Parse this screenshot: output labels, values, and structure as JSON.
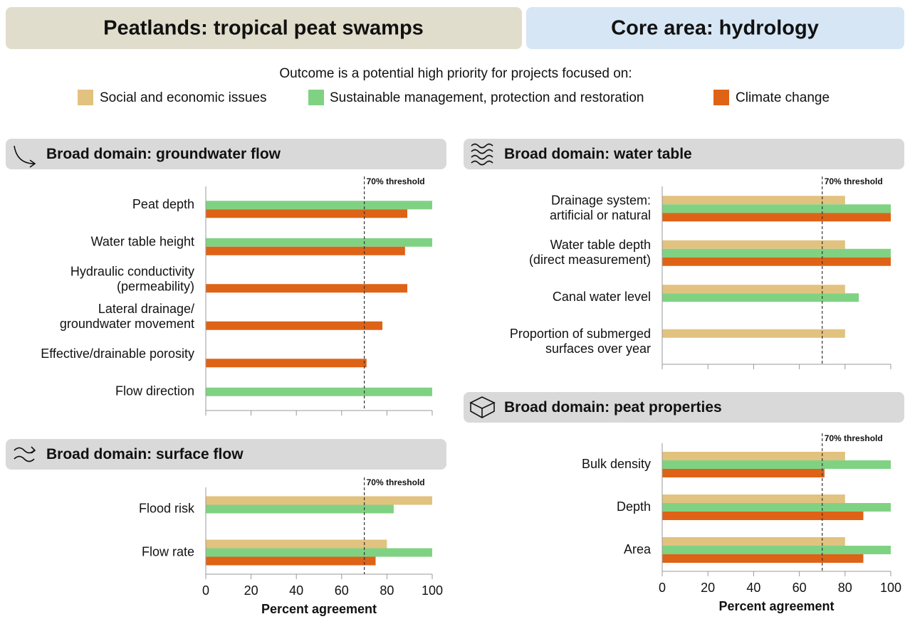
{
  "header": {
    "left": "Peatlands: tropical peat swamps",
    "right": "Core area: hydrology"
  },
  "legend": {
    "title": "Outcome is a potential high priority for projects focused on:",
    "items": [
      {
        "name": "Social and economic issues",
        "color": "#e2c27f"
      },
      {
        "name": "Sustainable management, protection and restoration",
        "color": "#80d283"
      },
      {
        "name": "Climate change",
        "color": "#de6316"
      }
    ]
  },
  "chart_data": [
    {
      "type": "bar",
      "title": "Broad domain: groundwater flow",
      "categories": [
        [
          "Peat depth"
        ],
        [
          "Water table height"
        ],
        [
          "Hydraulic conductivity",
          "(permeability)"
        ],
        [
          "Lateral drainage/",
          "groundwater movement"
        ],
        [
          "Effective/drainable porosity"
        ],
        [
          "Flow direction"
        ]
      ],
      "series": [
        {
          "values": [
            null,
            null,
            null,
            null,
            null,
            null
          ]
        },
        {
          "values": [
            100,
            100,
            null,
            null,
            null,
            100
          ]
        },
        {
          "values": [
            89,
            88,
            89,
            78,
            71,
            null
          ]
        }
      ],
      "xlim": [
        0,
        100
      ],
      "xticks": [
        0,
        20,
        40,
        60,
        80,
        100
      ],
      "tick_labels": false,
      "threshold": {
        "value": 70,
        "label": "70% threshold"
      }
    },
    {
      "type": "bar",
      "title": "Broad domain: surface flow",
      "categories": [
        [
          "Flood risk"
        ],
        [
          "Flow rate"
        ]
      ],
      "series": [
        {
          "values": [
            100,
            80
          ]
        },
        {
          "values": [
            83,
            100
          ]
        },
        {
          "values": [
            null,
            75
          ]
        }
      ],
      "xlim": [
        0,
        100
      ],
      "xticks": [
        0,
        20,
        40,
        60,
        80,
        100
      ],
      "tick_labels": true,
      "xlabel": "Percent agreement",
      "threshold": {
        "value": 70,
        "label": "70% threshold"
      }
    },
    {
      "type": "bar",
      "title": "Broad domain: water table",
      "categories": [
        [
          "Drainage system:",
          "artificial or natural"
        ],
        [
          "Water table depth",
          "(direct measurement)"
        ],
        [
          "Canal water level"
        ],
        [
          "Proportion of submerged",
          "surfaces over year"
        ]
      ],
      "series": [
        {
          "values": [
            80,
            80,
            80,
            80
          ]
        },
        {
          "values": [
            100,
            100,
            86,
            null
          ]
        },
        {
          "values": [
            100,
            100,
            null,
            null
          ]
        }
      ],
      "xlim": [
        0,
        100
      ],
      "xticks": [
        0,
        20,
        40,
        60,
        80,
        100
      ],
      "tick_labels": false,
      "threshold": {
        "value": 70,
        "label": "70% threshold"
      }
    },
    {
      "type": "bar",
      "title": "Broad domain: peat properties",
      "categories": [
        [
          "Bulk density"
        ],
        [
          "Depth"
        ],
        [
          "Area"
        ]
      ],
      "series": [
        {
          "values": [
            80,
            80,
            80
          ]
        },
        {
          "values": [
            100,
            100,
            100
          ]
        },
        {
          "values": [
            71,
            88,
            88
          ]
        }
      ],
      "xlim": [
        0,
        100
      ],
      "xticks": [
        0,
        20,
        40,
        60,
        80,
        100
      ],
      "tick_labels": true,
      "xlabel": "Percent agreement",
      "threshold": {
        "value": 70,
        "label": "70% threshold"
      }
    }
  ]
}
